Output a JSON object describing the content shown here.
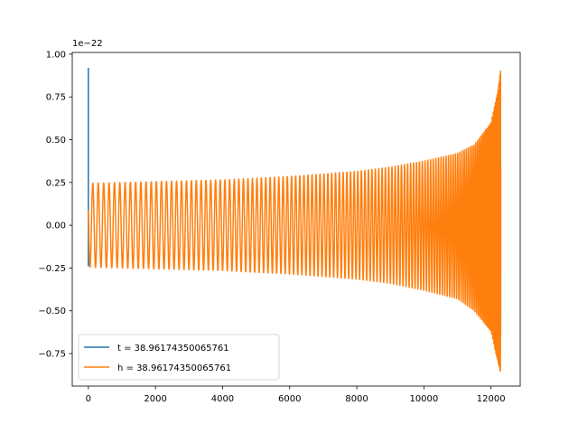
{
  "chart_data": {
    "type": "line",
    "title": "",
    "xlabel": "",
    "ylabel": "",
    "scale_label": "1e−22",
    "xlim": [
      -480,
      12870
    ],
    "ylim": [
      -0.94,
      1.01
    ],
    "xticks": [
      0,
      2000,
      4000,
      6000,
      8000,
      10000,
      12000
    ],
    "xtick_labels": [
      "0",
      "2000",
      "4000",
      "6000",
      "8000",
      "10000",
      "12000"
    ],
    "yticks": [
      -0.75,
      -0.5,
      -0.25,
      0.0,
      0.25,
      0.5,
      0.75,
      1.0
    ],
    "ytick_labels": [
      "−0.75",
      "−0.50",
      "−0.25",
      "0.00",
      "0.25",
      "0.50",
      "0.75",
      "1.00"
    ],
    "legend_position": "lower-left",
    "grid": false,
    "series": [
      {
        "name": "t = 38.96174350065761",
        "color": "#1f77b4",
        "description_of_shape": "spike",
        "x": [
          0,
          0,
          0,
          0,
          0
        ],
        "y": [
          0.17,
          0.92,
          0.0,
          -0.24,
          0.0
        ]
      },
      {
        "name": "h = 38.96174350065761",
        "color": "#ff7f0e",
        "n_cycles": 125,
        "x_end": 12290,
        "envelope_x": [
          0,
          2000,
          4000,
          6000,
          8000,
          9000,
          10000,
          11000,
          11500,
          12000,
          12200,
          12290
        ],
        "envelope_upper": [
          0.245,
          0.255,
          0.265,
          0.285,
          0.315,
          0.34,
          0.375,
          0.42,
          0.47,
          0.6,
          0.78,
          0.92
        ],
        "envelope_lower": [
          -0.245,
          -0.255,
          -0.265,
          -0.285,
          -0.315,
          -0.34,
          -0.38,
          -0.43,
          -0.5,
          -0.62,
          -0.8,
          -0.86
        ]
      }
    ]
  }
}
